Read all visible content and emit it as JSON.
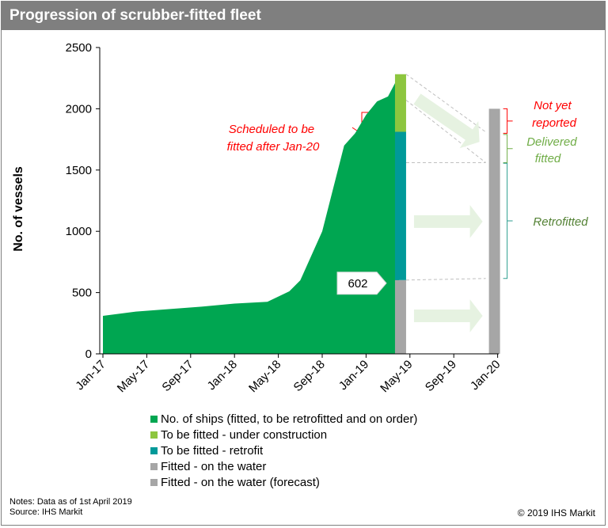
{
  "title": "Progression of scrubber-fitted fleet",
  "notes": "Notes: Data as of 1st April 2019",
  "source": "Source: IHS Markit",
  "copyright": "© 2019 IHS Markit",
  "colors": {
    "header": "#7f7f7f",
    "fleet": "#00a651",
    "under_construction": "#8dc63f",
    "retrofit": "#009999",
    "fitted": "#a6a6a6",
    "arrow": "#e6f2e1",
    "red_annotation": "#ff0000",
    "green_annotation": "#70ad47",
    "dark_green_annotation": "#548235",
    "teal_bracket": "#2e9e8f"
  },
  "legend": [
    {
      "label": "No. of ships (fitted, to be retrofitted and on order)",
      "color": "#00a651"
    },
    {
      "label": "To be fitted - under construction",
      "color": "#8dc63f"
    },
    {
      "label": "To be fitted - retrofit",
      "color": "#009999"
    },
    {
      "label": "Fitted - on the water",
      "color": "#a6a6a6"
    },
    {
      "label": "Fitted - on the water (forecast)",
      "color": "#a6a6a6"
    }
  ],
  "chart_data": {
    "type": "area",
    "ylabel": "No. of vessels",
    "xlabel": "",
    "ylim": [
      0,
      2500
    ],
    "yticks": [
      0,
      500,
      1000,
      1500,
      2000,
      2500
    ],
    "xticks": [
      "Jan-17",
      "May-17",
      "Sep-17",
      "Jan-18",
      "May-18",
      "Sep-18",
      "Jan-19",
      "May-19",
      "Sep-19",
      "Jan-20"
    ],
    "series": [
      {
        "name": "No. of ships (fitted, to be retrofitted and on order)",
        "x": [
          "2017-01",
          "2017-04",
          "2017-07",
          "2017-10",
          "2018-01",
          "2018-04",
          "2018-06",
          "2018-07",
          "2018-09",
          "2018-10",
          "2018-11",
          "2018-12",
          "2019-01",
          "2019-02",
          "2019-03",
          "2019-04"
        ],
        "values": [
          310,
          345,
          365,
          385,
          410,
          425,
          510,
          600,
          1000,
          1350,
          1700,
          1800,
          1950,
          2060,
          2100,
          2270
        ]
      }
    ],
    "stacked_bars": [
      {
        "x": "2019-04",
        "segments": [
          {
            "name": "Fitted - on the water",
            "value": 602
          },
          {
            "name": "To be fitted - retrofit",
            "value": 1210
          },
          {
            "name": "To be fitted - under construction",
            "value": 470
          }
        ]
      },
      {
        "x": "2020-01",
        "segments": [
          {
            "name": "Fitted - on the water (forecast)",
            "value": 2000
          }
        ]
      }
    ],
    "annotations": [
      {
        "text": "602",
        "x": "2019-04",
        "y": 602
      },
      {
        "lines": [
          "Scheduled to be",
          "fitted after Jan-20"
        ],
        "color": "red",
        "y_range": [
          1620,
          1970
        ]
      },
      {
        "lines": [
          "Not yet",
          "reported"
        ],
        "color": "red",
        "y_range": [
          1800,
          2000
        ]
      },
      {
        "lines": [
          "Delivered",
          "fitted"
        ],
        "color": "green",
        "y_range": [
          1560,
          1790
        ]
      },
      {
        "lines": [
          "Retrofitted"
        ],
        "color": "dark-green",
        "y_range": [
          615,
          1555
        ]
      }
    ]
  }
}
